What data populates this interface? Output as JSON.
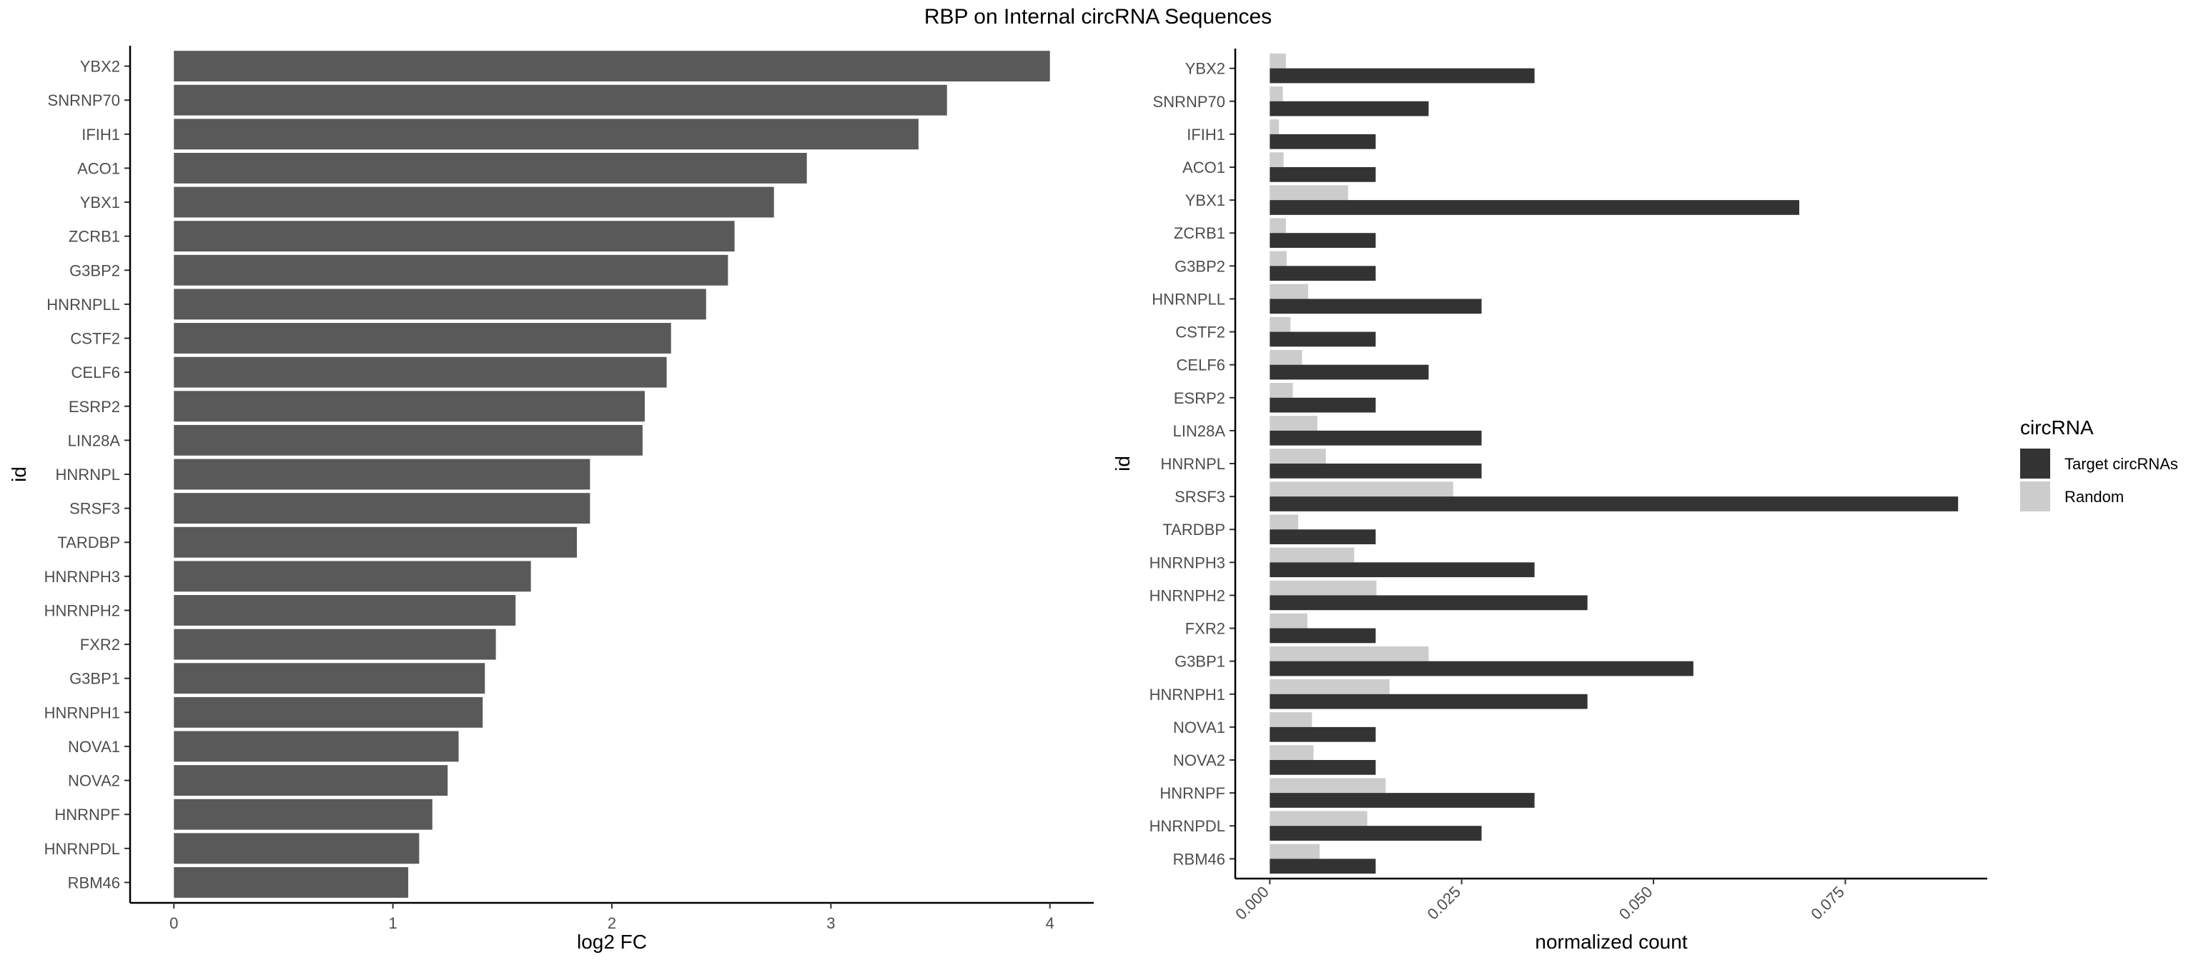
{
  "title": "RBP on Internal circRNA Sequences",
  "chart_data": [
    {
      "type": "bar",
      "orientation": "horizontal",
      "xlabel": "log2 FC",
      "ylabel": "id",
      "xlim": [
        -0.2,
        4.2
      ],
      "xticks": [
        "0",
        "1",
        "2",
        "3",
        "4"
      ],
      "grid": false,
      "categories": [
        "YBX2",
        "SNRNP70",
        "IFIH1",
        "ACO1",
        "YBX1",
        "ZCRB1",
        "G3BP2",
        "HNRNPLL",
        "CSTF2",
        "CELF6",
        "ESRP2",
        "LIN28A",
        "HNRNPL",
        "SRSF3",
        "TARDBP",
        "HNRNPH3",
        "HNRNPH2",
        "FXR2",
        "G3BP1",
        "HNRNPH1",
        "NOVA1",
        "NOVA2",
        "HNRNPF",
        "HNRNPDL",
        "RBM46"
      ],
      "values": [
        4.0,
        3.53,
        3.4,
        2.89,
        2.74,
        2.56,
        2.53,
        2.43,
        2.27,
        2.25,
        2.15,
        2.14,
        1.9,
        1.9,
        1.84,
        1.63,
        1.56,
        1.47,
        1.42,
        1.41,
        1.3,
        1.25,
        1.18,
        1.12,
        1.07
      ],
      "bar_color": "#595959"
    },
    {
      "type": "bar",
      "orientation": "horizontal",
      "grouped": true,
      "xlabel": "normalized count",
      "ylabel": "id",
      "xlim": [
        -0.0045,
        0.0935
      ],
      "xticks": [
        "0.000",
        "0.025",
        "0.050",
        "0.075"
      ],
      "grid": false,
      "categories": [
        "YBX2",
        "SNRNP70",
        "IFIH1",
        "ACO1",
        "YBX1",
        "ZCRB1",
        "G3BP2",
        "HNRNPLL",
        "CSTF2",
        "CELF6",
        "ESRP2",
        "LIN28A",
        "HNRNPL",
        "SRSF3",
        "TARDBP",
        "HNRNPH3",
        "HNRNPH2",
        "FXR2",
        "G3BP1",
        "HNRNPH1",
        "NOVA1",
        "NOVA2",
        "HNRNPF",
        "HNRNPDL",
        "RBM46"
      ],
      "legend": {
        "title": "circRNA",
        "position": "right",
        "entries": [
          "Target circRNAs",
          "Random"
        ]
      },
      "series": [
        {
          "name": "Target circRNAs",
          "color": "#333333",
          "values": [
            0.0345,
            0.0207,
            0.0138,
            0.0138,
            0.069,
            0.0138,
            0.0138,
            0.0276,
            0.0138,
            0.0207,
            0.0138,
            0.0276,
            0.0276,
            0.0897,
            0.0138,
            0.0345,
            0.0414,
            0.0138,
            0.0552,
            0.0414,
            0.0138,
            0.0138,
            0.0345,
            0.0276,
            0.0138
          ]
        },
        {
          "name": "Random",
          "color": "#cccccc",
          "values": [
            0.0021,
            0.0017,
            0.0012,
            0.0018,
            0.0102,
            0.0021,
            0.0022,
            0.005,
            0.0027,
            0.0042,
            0.003,
            0.0062,
            0.0073,
            0.0239,
            0.0037,
            0.011,
            0.0139,
            0.0049,
            0.0207,
            0.0156,
            0.0055,
            0.0057,
            0.0151,
            0.0127,
            0.0065
          ]
        }
      ]
    }
  ]
}
